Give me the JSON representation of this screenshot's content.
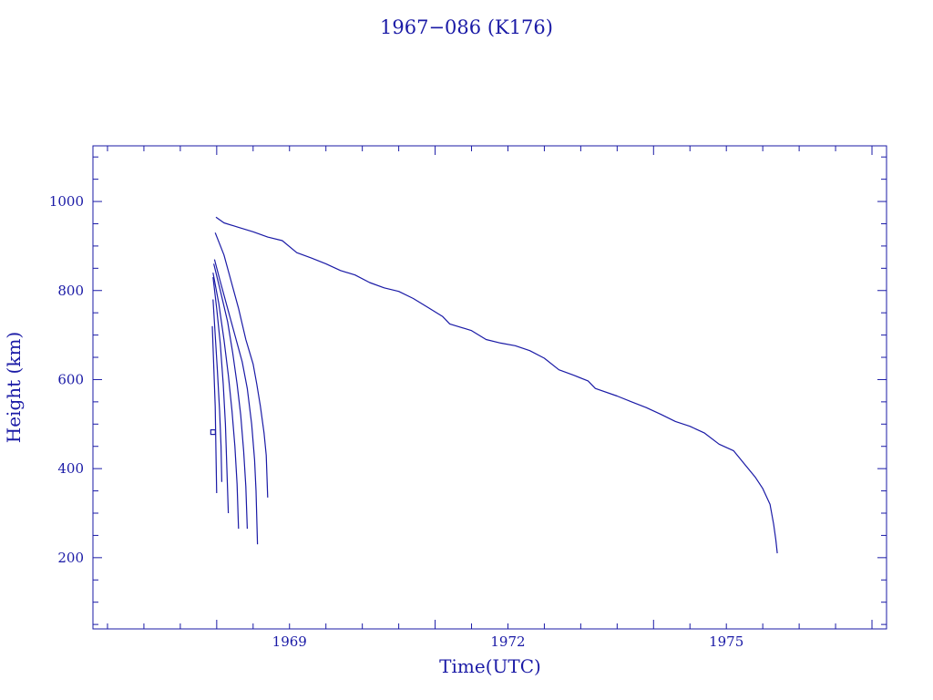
{
  "colors": {
    "ink": "#1a1aa6"
  },
  "chart_data": {
    "type": "line",
    "title": "1967−086 (K176)",
    "xlabel": "Time(UTC)",
    "ylabel": "Height (km)",
    "xlim": [
      1966.3,
      1977.2
    ],
    "ylim": [
      40,
      1125
    ],
    "x_ticks": [
      {
        "value": 1969,
        "label": "1969"
      },
      {
        "value": 1972,
        "label": "1972"
      },
      {
        "value": 1975,
        "label": "1975"
      }
    ],
    "y_ticks": [
      {
        "value": 200,
        "label": "200"
      },
      {
        "value": 400,
        "label": "400"
      },
      {
        "value": 600,
        "label": "600"
      },
      {
        "value": 800,
        "label": "800"
      },
      {
        "value": 1000,
        "label": "1000"
      }
    ],
    "grid": false,
    "series": [
      {
        "points": [
          [
            1967.99,
            965
          ],
          [
            1968.1,
            952
          ],
          [
            1968.3,
            942
          ],
          [
            1968.5,
            932
          ],
          [
            1968.7,
            920
          ],
          [
            1968.9,
            912
          ],
          [
            1969.1,
            885
          ],
          [
            1969.3,
            873
          ],
          [
            1969.5,
            860
          ],
          [
            1969.7,
            845
          ],
          [
            1969.9,
            835
          ],
          [
            1970.1,
            818
          ],
          [
            1970.3,
            806
          ],
          [
            1970.5,
            798
          ],
          [
            1970.7,
            782
          ],
          [
            1970.9,
            762
          ],
          [
            1971.1,
            742
          ],
          [
            1971.2,
            725
          ],
          [
            1971.5,
            710
          ],
          [
            1971.7,
            690
          ],
          [
            1971.9,
            682
          ],
          [
            1972.1,
            676
          ],
          [
            1972.3,
            665
          ],
          [
            1972.5,
            648
          ],
          [
            1972.7,
            622
          ],
          [
            1972.9,
            610
          ],
          [
            1973.1,
            597
          ],
          [
            1973.2,
            580
          ],
          [
            1973.5,
            563
          ],
          [
            1973.7,
            550
          ],
          [
            1973.9,
            537
          ],
          [
            1974.1,
            522
          ],
          [
            1974.3,
            506
          ],
          [
            1974.5,
            495
          ],
          [
            1974.7,
            480
          ],
          [
            1974.9,
            455
          ],
          [
            1975.1,
            440
          ],
          [
            1975.2,
            420
          ],
          [
            1975.4,
            380
          ],
          [
            1975.5,
            355
          ],
          [
            1975.6,
            320
          ],
          [
            1975.65,
            275
          ],
          [
            1975.68,
            240
          ],
          [
            1975.7,
            210
          ]
        ]
      },
      {
        "points": [
          [
            1967.98,
            930
          ],
          [
            1968.1,
            880
          ],
          [
            1968.2,
            820
          ],
          [
            1968.3,
            760
          ],
          [
            1968.4,
            690
          ],
          [
            1968.5,
            635
          ],
          [
            1968.55,
            590
          ],
          [
            1968.6,
            540
          ],
          [
            1968.65,
            480
          ],
          [
            1968.68,
            430
          ],
          [
            1968.7,
            335
          ]
        ]
      },
      {
        "points": [
          [
            1967.97,
            870
          ],
          [
            1968.05,
            820
          ],
          [
            1968.15,
            760
          ],
          [
            1968.25,
            700
          ],
          [
            1968.35,
            640
          ],
          [
            1968.42,
            580
          ],
          [
            1968.48,
            500
          ],
          [
            1968.52,
            420
          ],
          [
            1968.54,
            350
          ],
          [
            1968.56,
            230
          ]
        ]
      },
      {
        "points": [
          [
            1967.96,
            860
          ],
          [
            1968.05,
            800
          ],
          [
            1968.15,
            730
          ],
          [
            1968.22,
            660
          ],
          [
            1968.28,
            590
          ],
          [
            1968.33,
            520
          ],
          [
            1968.37,
            440
          ],
          [
            1968.4,
            360
          ],
          [
            1968.42,
            265
          ]
        ]
      },
      {
        "points": [
          [
            1967.95,
            840
          ],
          [
            1968.03,
            770
          ],
          [
            1968.1,
            690
          ],
          [
            1968.16,
            610
          ],
          [
            1968.21,
            530
          ],
          [
            1968.25,
            450
          ],
          [
            1968.28,
            365
          ],
          [
            1968.3,
            265
          ]
        ]
      },
      {
        "points": [
          [
            1967.95,
            830
          ],
          [
            1968.0,
            760
          ],
          [
            1968.05,
            680
          ],
          [
            1968.09,
            590
          ],
          [
            1968.12,
            500
          ],
          [
            1968.14,
            400
          ],
          [
            1968.16,
            300
          ]
        ]
      },
      {
        "points": [
          [
            1967.95,
            780
          ],
          [
            1967.98,
            700
          ],
          [
            1968.01,
            620
          ],
          [
            1968.04,
            530
          ],
          [
            1968.06,
            450
          ],
          [
            1968.07,
            370
          ]
        ]
      },
      {
        "points": [
          [
            1967.94,
            720
          ],
          [
            1967.96,
            630
          ],
          [
            1967.98,
            540
          ],
          [
            1967.99,
            440
          ],
          [
            1968.0,
            345
          ]
        ]
      }
    ],
    "markers": [
      {
        "x": 1967.95,
        "y": 482,
        "shape": "square"
      }
    ]
  }
}
